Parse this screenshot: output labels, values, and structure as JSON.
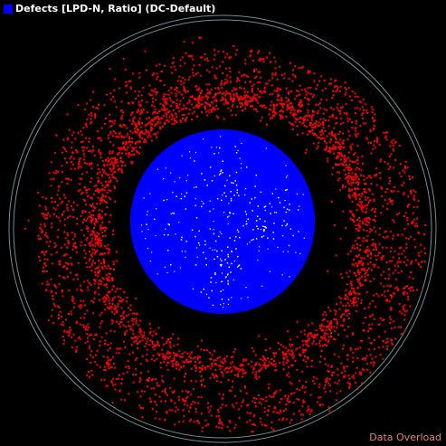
{
  "legend": {
    "label": "Defects [LPD-N, Ratio] (DC-Default)",
    "swatch_color": "#0000ff"
  },
  "status": {
    "text": "Data Overload",
    "color": "#f08060"
  },
  "colors": {
    "background": "#000000",
    "wafer_edge": "#6f8f8f",
    "outer_defects": "#ff0000",
    "center_cluster": "#0000ff",
    "center_points": "#f8f8f8"
  }
}
